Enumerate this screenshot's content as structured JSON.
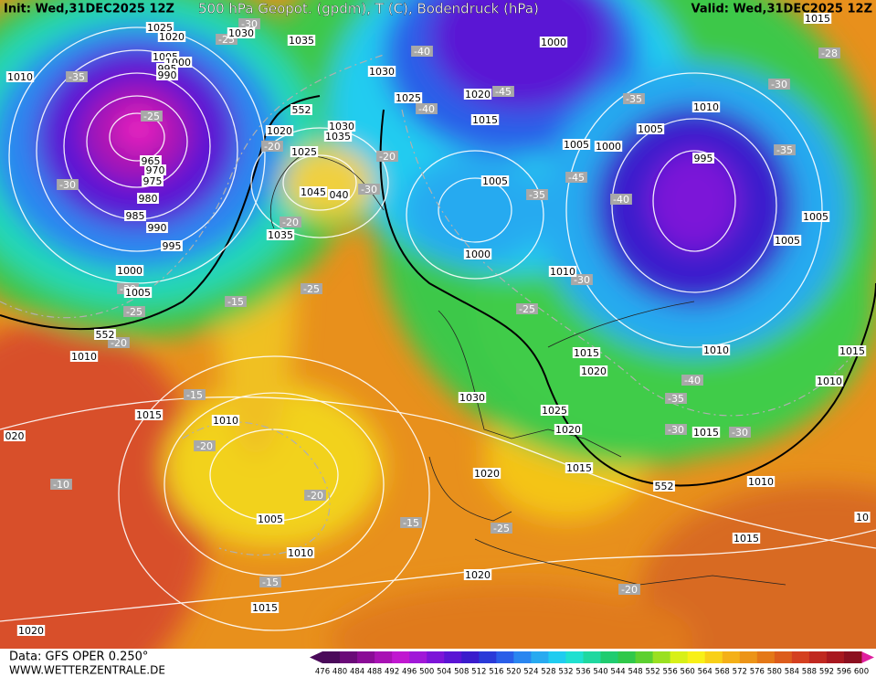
{
  "header": {
    "init": "Init: Wed,31DEC2025 12Z",
    "title": "500 hPa Geopot. (gpdm), T (C), Bodendruck (hPa)",
    "valid": "Valid: Wed,31DEC2025 12Z"
  },
  "footer": {
    "data": "Data: GFS OPER 0.250°",
    "site": "WWW.WETTERZENTRALE.DE"
  },
  "colorbar": {
    "labels": [
      476,
      480,
      484,
      488,
      492,
      496,
      500,
      504,
      508,
      512,
      516,
      520,
      524,
      528,
      532,
      536,
      540,
      544,
      548,
      552,
      556,
      560,
      564,
      568,
      572,
      576,
      580,
      584,
      588,
      592,
      596,
      600
    ],
    "colors": [
      "#4a0a5a",
      "#6a0a78",
      "#8a0c96",
      "#a812b4",
      "#c018d0",
      "#a018d8",
      "#7c14d8",
      "#5a14d4",
      "#3a1ccc",
      "#2a3ad8",
      "#2a5ee8",
      "#2a86f0",
      "#28aaf0",
      "#20ccf0",
      "#20e0d0",
      "#20d8a0",
      "#20cc70",
      "#30c84a",
      "#5cd030",
      "#9ae020",
      "#d8f018",
      "#f8f018",
      "#f8d018",
      "#f4b018",
      "#ec9418",
      "#e47818",
      "#dc5c1c",
      "#d44020",
      "#c02820",
      "#a81820",
      "#8c1020"
    ]
  },
  "pressure_labels": [
    "1025",
    "1020",
    "1030",
    "1035",
    "1005",
    "1000",
    "995",
    "990",
    "1010",
    "1030",
    "1025",
    "1020",
    "1015",
    "1000",
    "1010",
    "1005",
    "1005",
    "1000",
    "995",
    "1020",
    "1030",
    "1035",
    "1025",
    "965",
    "970",
    "975",
    "980",
    "985",
    "990",
    "995",
    "1045",
    "040",
    "1035",
    "1005",
    "1000",
    "1010",
    "1005",
    "1005",
    "1000",
    "1005",
    "1015",
    "1020",
    "1010",
    "1015",
    "1010",
    "1030",
    "1025",
    "1020",
    "1015",
    "1010",
    "1015",
    "1010",
    "020",
    "1015",
    "1020",
    "1010",
    "1005",
    "1010",
    "1015",
    "1020",
    "1015",
    "1020",
    "10",
    "1015"
  ],
  "temperature_labels": [
    "-35",
    "-25",
    "-30",
    "-25",
    "-30",
    "-20",
    "-20",
    "-30",
    "-20",
    "-25",
    "-15",
    "-40",
    "-40",
    "-45",
    "-35",
    "-30",
    "-28",
    "-35",
    "-45",
    "-35",
    "-40",
    "-30",
    "-25",
    "-30",
    "-25",
    "-20",
    "-15",
    "-20",
    "-20",
    "-10",
    "-15",
    "-25",
    "-15",
    "-20",
    "-40",
    "-35",
    "-30",
    "-30"
  ],
  "isoline_labels": [
    "552",
    "552",
    "552"
  ]
}
